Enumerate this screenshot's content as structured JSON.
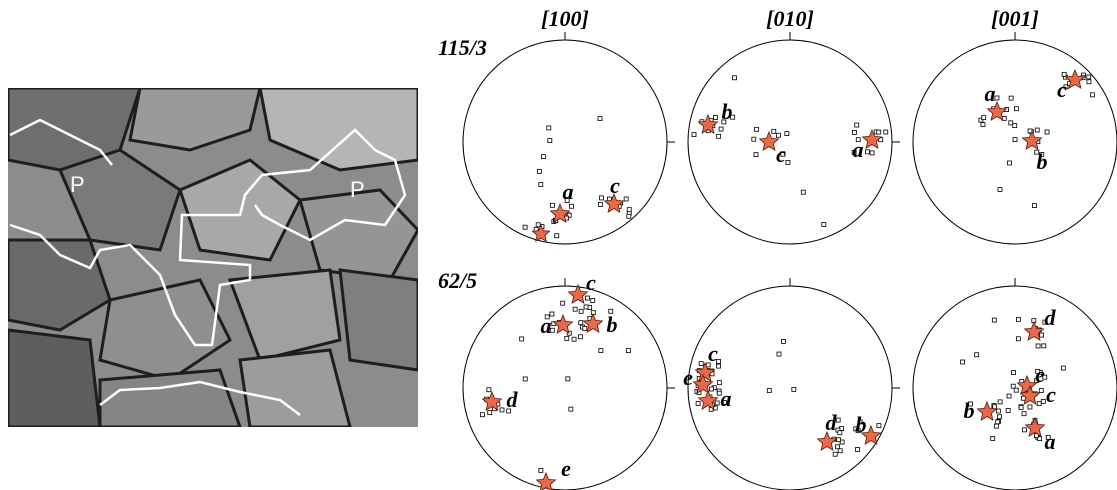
{
  "micrograph": {
    "labels": [
      "P",
      "P"
    ]
  },
  "pole_figures": {
    "columns": [
      "[100]",
      "[010]",
      "[001]"
    ],
    "rows": [
      {
        "label": "115/3",
        "plots": [
          [
            "a",
            "c"
          ],
          [
            "b",
            "c",
            "a"
          ],
          [
            "a",
            "c",
            "b"
          ]
        ]
      },
      {
        "label": "62/5",
        "plots": [
          [
            "c",
            "a",
            "b",
            "d",
            "e"
          ],
          [
            "c",
            "e",
            "a",
            "d",
            "b"
          ],
          [
            "d",
            "e",
            "c",
            "b",
            "a"
          ]
        ]
      }
    ]
  }
}
